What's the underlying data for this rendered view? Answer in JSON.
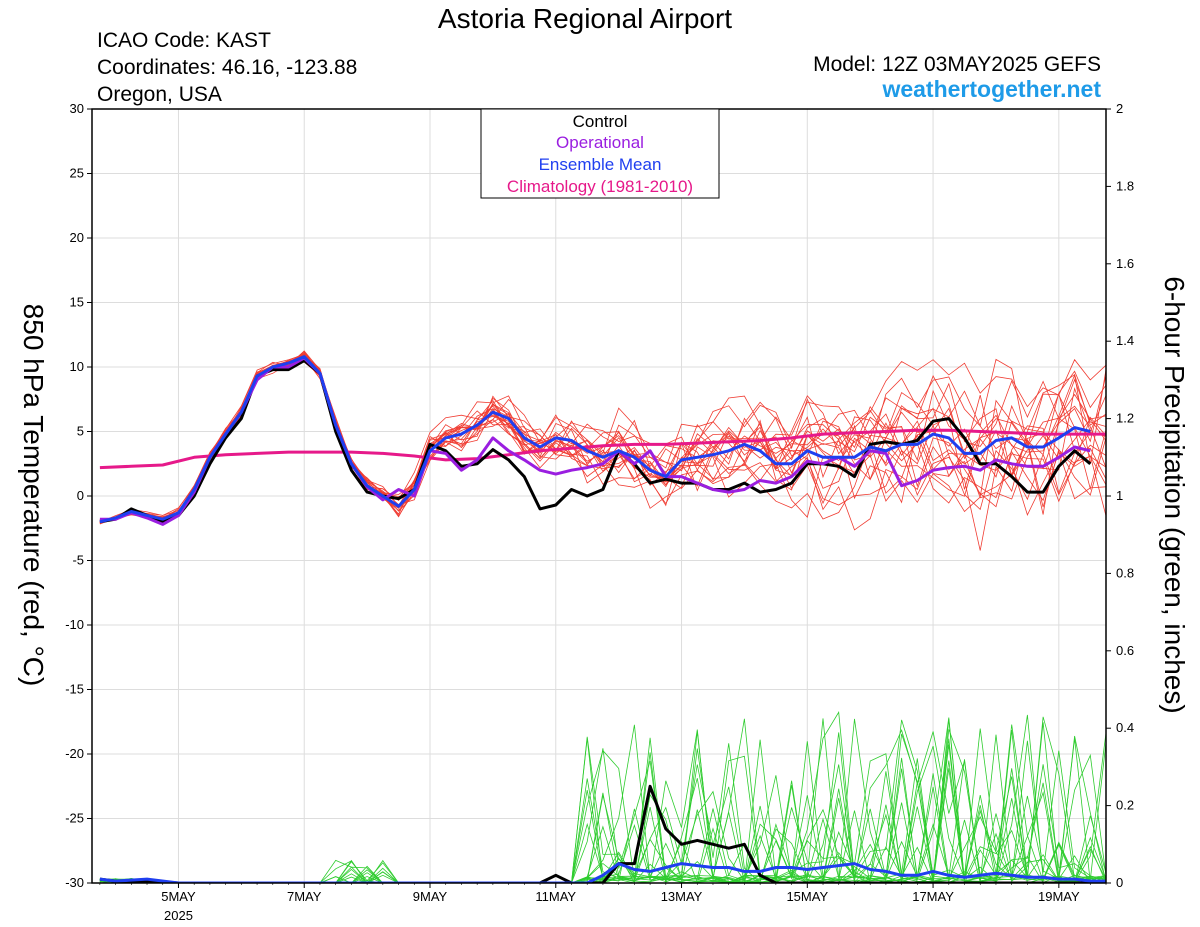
{
  "header": {
    "title": "Astoria Regional Airport",
    "icao": "ICAO Code: KAST",
    "coords": "Coordinates: 46.16, -123.88",
    "region": "Oregon, USA",
    "model": "Model: 12Z 03MAY2025 GEFS",
    "brand": "weathertogether.net",
    "brand_color": "#1e9be8"
  },
  "chart_data": {
    "type": "line",
    "title": "Astoria Regional Airport",
    "ylabel": "850 hPa Temperature (red, °C)",
    "y2label": "6-hour Precipitation (green, inches)",
    "xlim": [
      3.625,
      19.75
    ],
    "ylim": [
      -30,
      30
    ],
    "y2lim": [
      0,
      2
    ],
    "yticks": [
      30,
      25,
      20,
      15,
      10,
      5,
      0,
      -5,
      -10,
      -15,
      -20,
      -25,
      -30
    ],
    "y2ticks": [
      2,
      1.8,
      1.6,
      1.4,
      1.2,
      1,
      0.8,
      0.6,
      0.4,
      0.2,
      0
    ],
    "xticks": [
      {
        "day": 5,
        "label": "5MAY",
        "sublabel": "2025"
      },
      {
        "day": 7,
        "label": "7MAY"
      },
      {
        "day": 9,
        "label": "9MAY"
      },
      {
        "day": 11,
        "label": "11MAY"
      },
      {
        "day": 13,
        "label": "13MAY"
      },
      {
        "day": 15,
        "label": "15MAY"
      },
      {
        "day": 17,
        "label": "17MAY"
      },
      {
        "day": 19,
        "label": "19MAY"
      }
    ],
    "grid": true,
    "legend": {
      "position": "top-center",
      "entries": [
        {
          "label": "Control",
          "color": "#000000"
        },
        {
          "label": "Operational",
          "color": "#9a1ee0"
        },
        {
          "label": "Ensemble Mean",
          "color": "#1f3ff0"
        },
        {
          "label": "Climatology (1981-2010)",
          "color": "#e6198a"
        }
      ]
    },
    "colors": {
      "member_temp": "#f03c32",
      "member_precip": "#2ecc2e",
      "control": "#000000",
      "operational": "#9a1ee0",
      "mean": "#1f3ff0",
      "climatology": "#e6198a"
    },
    "temperature_series": [
      {
        "name": "Control",
        "points": [
          [
            3.75,
            -2
          ],
          [
            4,
            -1.8
          ],
          [
            4.25,
            -1
          ],
          [
            4.5,
            -1.5
          ],
          [
            4.75,
            -2
          ],
          [
            5,
            -1.5
          ],
          [
            5.25,
            0
          ],
          [
            5.5,
            2.5
          ],
          [
            5.75,
            4.5
          ],
          [
            6,
            6
          ],
          [
            6.25,
            9.3
          ],
          [
            6.5,
            9.8
          ],
          [
            6.75,
            9.8
          ],
          [
            7,
            10.5
          ],
          [
            7.25,
            9.5
          ],
          [
            7.5,
            5
          ],
          [
            7.75,
            2
          ],
          [
            8,
            0.3
          ],
          [
            8.25,
            0
          ],
          [
            8.5,
            -0.2
          ],
          [
            8.75,
            0.5
          ],
          [
            9,
            4
          ],
          [
            9.25,
            3.5
          ],
          [
            9.5,
            2.3
          ],
          [
            9.75,
            2.5
          ],
          [
            10,
            3.6
          ],
          [
            10.25,
            2.8
          ],
          [
            10.5,
            1.5
          ],
          [
            10.75,
            -1
          ],
          [
            11,
            -0.7
          ],
          [
            11.25,
            0.5
          ],
          [
            11.5,
            0
          ],
          [
            11.75,
            0.5
          ],
          [
            12,
            3.5
          ],
          [
            12.25,
            2.5
          ],
          [
            12.5,
            1
          ],
          [
            12.75,
            1.3
          ],
          [
            13,
            1
          ],
          [
            13.25,
            1
          ],
          [
            13.5,
            0.5
          ],
          [
            13.75,
            0.5
          ],
          [
            14,
            1
          ],
          [
            14.25,
            0.3
          ],
          [
            14.5,
            0.5
          ],
          [
            14.75,
            1
          ],
          [
            15,
            2.5
          ],
          [
            15.25,
            2.5
          ],
          [
            15.5,
            2.3
          ],
          [
            15.75,
            1.5
          ],
          [
            16,
            4
          ],
          [
            16.25,
            4.2
          ],
          [
            16.5,
            4
          ],
          [
            16.75,
            4.3
          ],
          [
            17,
            5.8
          ],
          [
            17.25,
            6
          ],
          [
            17.5,
            4.5
          ],
          [
            17.75,
            2.5
          ],
          [
            18,
            2.5
          ],
          [
            18.25,
            1.5
          ],
          [
            18.5,
            0.3
          ],
          [
            18.75,
            0.3
          ],
          [
            19,
            2.3
          ],
          [
            19.25,
            3.5
          ],
          [
            19.5,
            2.5
          ]
        ]
      },
      {
        "name": "Operational",
        "points": [
          [
            3.75,
            -1.8
          ],
          [
            4,
            -1.8
          ],
          [
            4.25,
            -1.3
          ],
          [
            4.5,
            -1.7
          ],
          [
            4.75,
            -2.2
          ],
          [
            5,
            -1.5
          ],
          [
            5.25,
            0.3
          ],
          [
            5.5,
            3
          ],
          [
            5.75,
            4.8
          ],
          [
            6,
            6.5
          ],
          [
            6.25,
            9
          ],
          [
            6.5,
            10
          ],
          [
            6.75,
            10
          ],
          [
            7,
            10.7
          ],
          [
            7.25,
            9.5
          ],
          [
            7.5,
            5.5
          ],
          [
            7.75,
            2.5
          ],
          [
            8,
            0.7
          ],
          [
            8.25,
            -0.3
          ],
          [
            8.5,
            0.5
          ],
          [
            8.75,
            0
          ],
          [
            9,
            3.5
          ],
          [
            9.25,
            3.3
          ],
          [
            9.5,
            2
          ],
          [
            9.75,
            2.8
          ],
          [
            10,
            4.5
          ],
          [
            10.25,
            3.5
          ],
          [
            10.5,
            2.8
          ],
          [
            10.75,
            2
          ],
          [
            11,
            1.7
          ],
          [
            11.25,
            2
          ],
          [
            11.5,
            2.2
          ],
          [
            11.75,
            2.5
          ],
          [
            12,
            3.5
          ],
          [
            12.25,
            2.5
          ],
          [
            12.5,
            3.5
          ],
          [
            12.75,
            1.5
          ],
          [
            13,
            1.5
          ],
          [
            13.25,
            1
          ],
          [
            13.5,
            0.5
          ],
          [
            13.75,
            0.3
          ],
          [
            14,
            0.5
          ],
          [
            14.25,
            1.2
          ],
          [
            14.5,
            1
          ],
          [
            14.75,
            1.5
          ],
          [
            15,
            2.7
          ],
          [
            15.25,
            2.5
          ],
          [
            15.5,
            3
          ],
          [
            15.75,
            2.3
          ],
          [
            16,
            3.5
          ],
          [
            16.25,
            3.3
          ],
          [
            16.5,
            0.8
          ],
          [
            16.75,
            1.2
          ],
          [
            17,
            2
          ],
          [
            17.25,
            2.2
          ],
          [
            17.5,
            2.3
          ],
          [
            17.75,
            2
          ],
          [
            18,
            2.8
          ],
          [
            18.25,
            2.5
          ],
          [
            18.5,
            2.3
          ],
          [
            18.75,
            2.3
          ],
          [
            19,
            3
          ],
          [
            19.25,
            3.8
          ],
          [
            19.5,
            3.5
          ]
        ]
      },
      {
        "name": "Ensemble Mean",
        "points": [
          [
            3.75,
            -2
          ],
          [
            4,
            -1.7
          ],
          [
            4.25,
            -1.2
          ],
          [
            4.5,
            -1.5
          ],
          [
            4.75,
            -1.8
          ],
          [
            5,
            -1.3
          ],
          [
            5.25,
            0.5
          ],
          [
            5.5,
            3
          ],
          [
            5.75,
            4.8
          ],
          [
            6,
            6.5
          ],
          [
            6.25,
            9.3
          ],
          [
            6.5,
            10
          ],
          [
            6.75,
            10.3
          ],
          [
            7,
            10.8
          ],
          [
            7.25,
            9.5
          ],
          [
            7.5,
            5.5
          ],
          [
            7.75,
            2.5
          ],
          [
            8,
            0.8
          ],
          [
            8.25,
            0
          ],
          [
            8.5,
            -0.8
          ],
          [
            8.75,
            0.5
          ],
          [
            9,
            3.5
          ],
          [
            9.25,
            4.5
          ],
          [
            9.5,
            4.8
          ],
          [
            9.75,
            5.5
          ],
          [
            10,
            6.5
          ],
          [
            10.25,
            6
          ],
          [
            10.5,
            4.5
          ],
          [
            10.75,
            3.8
          ],
          [
            11,
            4.5
          ],
          [
            11.25,
            4.3
          ],
          [
            11.5,
            3.5
          ],
          [
            11.75,
            3
          ],
          [
            12,
            3.5
          ],
          [
            12.25,
            3
          ],
          [
            12.5,
            2
          ],
          [
            12.75,
            1.5
          ],
          [
            13,
            2.8
          ],
          [
            13.25,
            3
          ],
          [
            13.5,
            3.2
          ],
          [
            13.75,
            3.5
          ],
          [
            14,
            4
          ],
          [
            14.25,
            3.5
          ],
          [
            14.5,
            2.5
          ],
          [
            14.75,
            2.5
          ],
          [
            15,
            3.5
          ],
          [
            15.25,
            3
          ],
          [
            15.5,
            3
          ],
          [
            15.75,
            3
          ],
          [
            16,
            3.8
          ],
          [
            16.25,
            3.5
          ],
          [
            16.5,
            4
          ],
          [
            16.75,
            4
          ],
          [
            17,
            4.8
          ],
          [
            17.25,
            4.5
          ],
          [
            17.5,
            3.3
          ],
          [
            17.75,
            3.3
          ],
          [
            18,
            4.3
          ],
          [
            18.25,
            4.5
          ],
          [
            18.5,
            3.8
          ],
          [
            18.75,
            3.8
          ],
          [
            19,
            4.5
          ],
          [
            19.25,
            5.3
          ],
          [
            19.5,
            5
          ]
        ]
      },
      {
        "name": "Climatology (1981-2010)",
        "points": [
          [
            3.75,
            2.2
          ],
          [
            4.25,
            2.3
          ],
          [
            4.75,
            2.4
          ],
          [
            5.25,
            3
          ],
          [
            5.75,
            3.2
          ],
          [
            6.25,
            3.3
          ],
          [
            6.75,
            3.4
          ],
          [
            7.25,
            3.4
          ],
          [
            7.75,
            3.4
          ],
          [
            8.25,
            3.3
          ],
          [
            8.75,
            3.1
          ],
          [
            9.25,
            2.8
          ],
          [
            9.75,
            2.9
          ],
          [
            10.25,
            3.2
          ],
          [
            10.75,
            3.5
          ],
          [
            11.25,
            3.7
          ],
          [
            11.75,
            3.9
          ],
          [
            12.25,
            4.0
          ],
          [
            12.75,
            4.0
          ],
          [
            13.25,
            4.1
          ],
          [
            13.75,
            4.2
          ],
          [
            14.25,
            4.3
          ],
          [
            14.75,
            4.5
          ],
          [
            15.25,
            4.8
          ],
          [
            15.75,
            4.9
          ],
          [
            16.25,
            5.0
          ],
          [
            16.75,
            5.1
          ],
          [
            17.25,
            5.1
          ],
          [
            17.75,
            5.0
          ],
          [
            18.25,
            4.9
          ],
          [
            18.75,
            4.8
          ],
          [
            19.25,
            4.8
          ],
          [
            19.75,
            4.8
          ]
        ]
      }
    ],
    "precip_series": [
      {
        "name": "Control",
        "points": [
          [
            3.75,
            0.01
          ],
          [
            4,
            0.005
          ],
          [
            4.5,
            0.005
          ],
          [
            5,
            0
          ],
          [
            10.75,
            0
          ],
          [
            11,
            0.02
          ],
          [
            11.25,
            0
          ],
          [
            11.75,
            0
          ],
          [
            12,
            0.05
          ],
          [
            12.25,
            0.05
          ],
          [
            12.5,
            0.25
          ],
          [
            12.75,
            0.14
          ],
          [
            13,
            0.1
          ],
          [
            13.25,
            0.11
          ],
          [
            13.5,
            0.1
          ],
          [
            13.75,
            0.09
          ],
          [
            14,
            0.1
          ],
          [
            14.25,
            0.02
          ],
          [
            14.5,
            0
          ],
          [
            19.75,
            0
          ]
        ]
      },
      {
        "name": "Ensemble Mean",
        "points": [
          [
            3.75,
            0.01
          ],
          [
            4,
            0.005
          ],
          [
            4.5,
            0.01
          ],
          [
            5,
            0
          ],
          [
            11.5,
            0
          ],
          [
            11.75,
            0.02
          ],
          [
            12,
            0.05
          ],
          [
            12.25,
            0.035
          ],
          [
            12.5,
            0.03
          ],
          [
            12.75,
            0.04
          ],
          [
            13,
            0.05
          ],
          [
            13.25,
            0.045
          ],
          [
            13.5,
            0.04
          ],
          [
            13.75,
            0.04
          ],
          [
            14,
            0.03
          ],
          [
            14.25,
            0.03
          ],
          [
            14.5,
            0.04
          ],
          [
            14.75,
            0.04
          ],
          [
            15,
            0.035
          ],
          [
            15.25,
            0.04
          ],
          [
            15.5,
            0.045
          ],
          [
            15.75,
            0.05
          ],
          [
            16,
            0.035
          ],
          [
            16.25,
            0.03
          ],
          [
            16.5,
            0.02
          ],
          [
            16.75,
            0.02
          ],
          [
            17,
            0.03
          ],
          [
            17.25,
            0.02
          ],
          [
            17.5,
            0.015
          ],
          [
            17.75,
            0.02
          ],
          [
            18,
            0.025
          ],
          [
            18.25,
            0.02
          ],
          [
            18.5,
            0.015
          ],
          [
            18.75,
            0.015
          ],
          [
            19,
            0.01
          ],
          [
            19.25,
            0.01
          ],
          [
            19.5,
            0.005
          ],
          [
            19.75,
            0.005
          ]
        ]
      }
    ]
  }
}
